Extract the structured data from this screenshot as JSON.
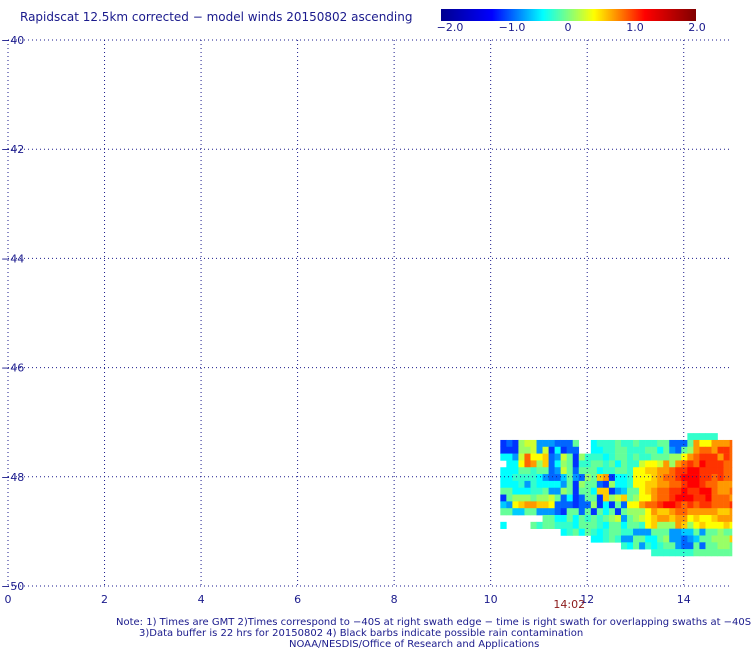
{
  "title": "Rapidscat 12.5km corrected − model winds 20150802 ascending",
  "colorbar": {
    "ticks": [
      "−2.0",
      "−1.0",
      "0",
      "1.0",
      "2.0"
    ],
    "colors": [
      "#00008f",
      "#0000ff",
      "#00ffff",
      "#ffff00",
      "#ff0000",
      "#800000"
    ]
  },
  "chart_data": {
    "type": "heatmap",
    "x_ticks": [
      "0",
      "2",
      "4",
      "6",
      "8",
      "10",
      "12",
      "14"
    ],
    "y_ticks": [
      "−40",
      "−42",
      "−44",
      "−46",
      "−48",
      "−50"
    ],
    "xlim": [
      0,
      15
    ],
    "ylim": [
      -50,
      -40
    ],
    "value_range": [
      -2.0,
      2.0
    ],
    "grid": "dotted",
    "time_label": "14:02",
    "time_label_x": 11.3,
    "cell_size_deg": 0.125,
    "swath": {
      "lon0": 10.2,
      "lat0": -47.2,
      "rows": [
        "...............................LLLLL....xm",
        "ghgnooiiihhhm..KLLLMLLMLLLMMhhhmrpprrrslmn",
        "gggnnoiogkghh..KKLLMMLLLMMKMihmnrssrttsrmn",
        "KKiosppqhiomgnLLLKLMMLMLLMMMnnprstttrtssrn",
        ".KKpsrnqhknmglLMMLMKMLLoppornrstsutttsstrr",
        "KKKMMLmmhiomhmmmKLLMMLppqqrrsttuuttttssrrp",
        "KKLLLLKihhjmihnmqrgkKLpppqrsstuuuttstsssrp",
        "KKKLiLKKKKimgnmmhgnKKLppqqrrsstuutssrrrqpq",
        "mmKKKLLMiinmgmmkqqgijmmpqrssttuttuusrrssrp",
        "gmnnnmnnomhkghmmgqnoqmnpprsstuuuttusssrrqq",
        "jipqrrqqphhhghhngkgmhpprsstuutststtsssttss",
        "mmjjmmiiihgmmhmgMkmgmnnnprqqrssrrrrrqqrrrq",
        ".......MMKKMKMLMLmnoimnopqrrqrrpqppqrrrnnn",
        "K....MLMMLLLKMMMLKMMKMMLpqnnnrqnpqpppqpqpp",
        "..........KLMKMLKLMMLLiiimmmiijjmimmnmmmon",
        "...............KKLMLiimmkkmniihijmmnnnqnnn",
        "....................LKMiLKLMMihhmhmmnnmnmn",
        ".........................LLLLLLLmmmmmmmmnm"
      ]
    }
  },
  "notes": {
    "line1": "Note: 1) Times are GMT 2)Times correspond to −40S at right swath edge − time is right swath for overlapping swaths at −40S",
    "line2": "3)Data buffer is 22 hrs for 20150802 4) Black barbs indicate possible rain contamination",
    "line3": "NOAA/NESDIS/Office of Research and Applications"
  }
}
